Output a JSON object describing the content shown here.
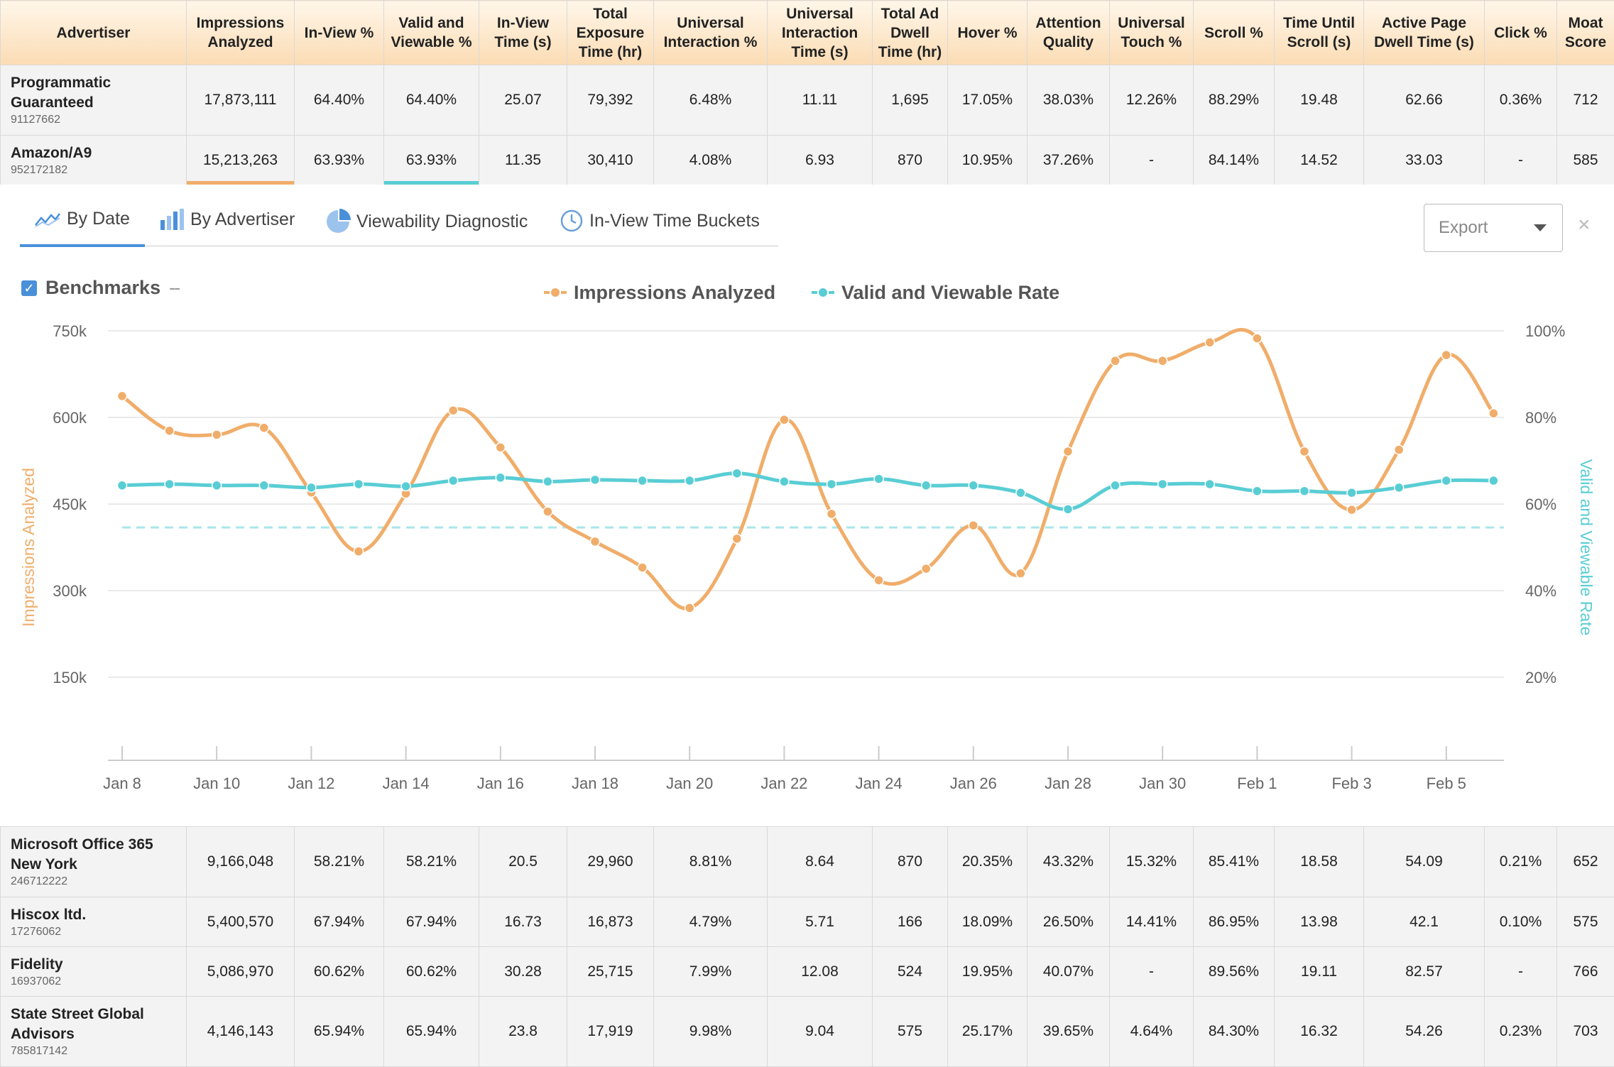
{
  "table": {
    "headers": [
      "Advertiser",
      "Impressions Analyzed",
      "In-View %",
      "Valid and Viewable %",
      "In-View Time (s)",
      "Total Exposure Time (hr)",
      "Universal Interaction %",
      "Universal Interaction Time (s)",
      "Total Ad Dwell Time (hr)",
      "Hover %",
      "Attention Quality",
      "Universal Touch %",
      "Scroll %",
      "Time Until Scroll (s)",
      "Active Page Dwell Time (s)",
      "Click %",
      "Moat Score"
    ],
    "top_rows": [
      {
        "name": "Programmatic Guaranteed",
        "id": "91127662",
        "cells": [
          "17,873,111",
          "64.40%",
          "64.40%",
          "25.07",
          "79,392",
          "6.48%",
          "11.11",
          "1,695",
          "17.05%",
          "38.03%",
          "12.26%",
          "88.29%",
          "19.48",
          "62.66",
          "0.36%",
          "712"
        ]
      },
      {
        "name": "Amazon/A9",
        "id": "952172182",
        "cells": [
          "15,213,263",
          "63.93%",
          "63.93%",
          "11.35",
          "30,410",
          "4.08%",
          "6.93",
          "870",
          "10.95%",
          "37.26%",
          "-",
          "84.14%",
          "14.52",
          "33.03",
          "-",
          "585"
        ]
      }
    ],
    "bottom_rows": [
      {
        "name": "Microsoft Office 365 New York",
        "id": "246712222",
        "cells": [
          "9,166,048",
          "58.21%",
          "58.21%",
          "20.5",
          "29,960",
          "8.81%",
          "8.64",
          "870",
          "20.35%",
          "43.32%",
          "15.32%",
          "85.41%",
          "18.58",
          "54.09",
          "0.21%",
          "652"
        ]
      },
      {
        "name": "Hiscox ltd.",
        "id": "17276062",
        "cells": [
          "5,400,570",
          "67.94%",
          "67.94%",
          "16.73",
          "16,873",
          "4.79%",
          "5.71",
          "166",
          "18.09%",
          "26.50%",
          "14.41%",
          "86.95%",
          "13.98",
          "42.1",
          "0.10%",
          "575"
        ]
      },
      {
        "name": "Fidelity",
        "id": "16937062",
        "cells": [
          "5,086,970",
          "60.62%",
          "60.62%",
          "30.28",
          "25,715",
          "7.99%",
          "12.08",
          "524",
          "19.95%",
          "40.07%",
          "-",
          "89.56%",
          "19.11",
          "82.57",
          "-",
          "766"
        ]
      },
      {
        "name": "State Street Global Advisors",
        "id": "785817142",
        "cells": [
          "4,146,143",
          "65.94%",
          "65.94%",
          "23.8",
          "17,919",
          "9.98%",
          "9.04",
          "575",
          "25.17%",
          "39.65%",
          "4.64%",
          "84.30%",
          "16.32",
          "54.26",
          "0.23%",
          "703"
        ]
      }
    ]
  },
  "tabs": [
    {
      "label": "By Date",
      "icon": "line-chart-icon"
    },
    {
      "label": "By Advertiser",
      "icon": "bar-chart-icon"
    },
    {
      "label": "Viewability Diagnostic",
      "icon": "pie-chart-icon"
    },
    {
      "label": "In-View Time Buckets",
      "icon": "clock-icon"
    }
  ],
  "export_label": "Export",
  "close_glyph": "×",
  "benchmarks": {
    "label": "Benchmarks",
    "dash": "--",
    "check": "✓"
  },
  "colors": {
    "orange": "#f0ad6a",
    "teal": "#59cdd4",
    "active_tab": "#4a90d9"
  },
  "chart_data": {
    "type": "line",
    "x": [
      "Jan 8",
      "Jan 9",
      "Jan 10",
      "Jan 11",
      "Jan 12",
      "Jan 13",
      "Jan 14",
      "Jan 15",
      "Jan 16",
      "Jan 17",
      "Jan 18",
      "Jan 19",
      "Jan 20",
      "Jan 21",
      "Jan 22",
      "Jan 23",
      "Jan 24",
      "Jan 25",
      "Jan 26",
      "Jan 27",
      "Jan 28",
      "Jan 29",
      "Jan 30",
      "Jan 31",
      "Feb 1",
      "Feb 2",
      "Feb 3",
      "Feb 4",
      "Feb 5",
      "Feb 6"
    ],
    "x_ticks": [
      "Jan 8",
      "Jan 10",
      "Jan 12",
      "Jan 14",
      "Jan 16",
      "Jan 18",
      "Jan 20",
      "Jan 22",
      "Jan 24",
      "Jan 26",
      "Jan 28",
      "Jan 30",
      "Feb 1",
      "Feb 3",
      "Feb 5"
    ],
    "series": [
      {
        "name": "Impressions Analyzed",
        "axis": "left",
        "color": "#f0ad6a",
        "values": [
          637000,
          577000,
          570000,
          582000,
          470000,
          368000,
          468000,
          612000,
          548000,
          437000,
          385000,
          340000,
          270000,
          390000,
          596000,
          433000,
          318000,
          338000,
          413000,
          330000,
          541000,
          698000,
          698000,
          730000,
          737000,
          541000,
          440000,
          544000,
          708000,
          607000
        ]
      },
      {
        "name": "Valid and Viewable Rate",
        "axis": "right",
        "color": "#59cdd4",
        "values": [
          64.3,
          64.6,
          64.3,
          64.3,
          63.8,
          64.6,
          64.1,
          65.4,
          66.1,
          65.2,
          65.6,
          65.4,
          65.4,
          67.1,
          65.2,
          64.6,
          65.8,
          64.3,
          64.3,
          62.6,
          58.8,
          64.3,
          64.6,
          64.6,
          63.0,
          63.0,
          62.6,
          63.8,
          65.4,
          65.4
        ]
      }
    ],
    "benchmark": {
      "axis": "right",
      "value": 54.6
    },
    "y_left": {
      "title": "Impressions Analyzed",
      "ticks": [
        "150k",
        "300k",
        "450k",
        "600k",
        "750k"
      ],
      "range": [
        0,
        750000
      ]
    },
    "y_right": {
      "title": "Valid and Viewable Rate",
      "ticks": [
        "20%",
        "40%",
        "60%",
        "80%",
        "100%"
      ],
      "range": [
        0,
        100
      ]
    },
    "legend": [
      "Impressions Analyzed",
      "Valid and Viewable Rate"
    ],
    "legend_position": "top-center",
    "grid": true
  }
}
